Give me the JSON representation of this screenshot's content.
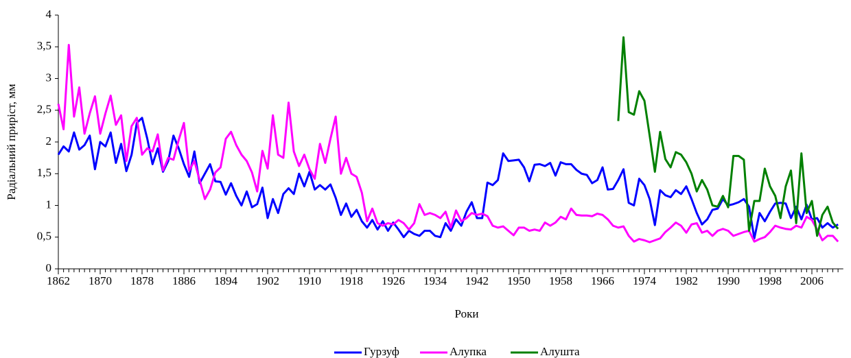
{
  "chart_data": {
    "type": "line",
    "x_label": "Роки",
    "y_label": "Радіальний приріст, мм",
    "x": [
      1862,
      1863,
      1864,
      1865,
      1866,
      1867,
      1868,
      1869,
      1870,
      1871,
      1872,
      1873,
      1874,
      1875,
      1876,
      1877,
      1878,
      1879,
      1880,
      1881,
      1882,
      1883,
      1884,
      1885,
      1886,
      1887,
      1888,
      1889,
      1890,
      1891,
      1892,
      1893,
      1894,
      1895,
      1896,
      1897,
      1898,
      1899,
      1900,
      1901,
      1902,
      1903,
      1904,
      1905,
      1906,
      1907,
      1908,
      1909,
      1910,
      1911,
      1912,
      1913,
      1914,
      1915,
      1916,
      1917,
      1918,
      1919,
      1920,
      1921,
      1922,
      1923,
      1924,
      1925,
      1926,
      1927,
      1928,
      1929,
      1930,
      1931,
      1932,
      1933,
      1934,
      1935,
      1936,
      1937,
      1938,
      1939,
      1940,
      1941,
      1942,
      1943,
      1944,
      1945,
      1946,
      1947,
      1948,
      1949,
      1950,
      1951,
      1952,
      1953,
      1954,
      1955,
      1956,
      1957,
      1958,
      1959,
      1960,
      1961,
      1962,
      1963,
      1964,
      1965,
      1966,
      1967,
      1968,
      1969,
      1970,
      1971,
      1972,
      1973,
      1974,
      1975,
      1976,
      1977,
      1978,
      1979,
      1980,
      1981,
      1982,
      1983,
      1984,
      1985,
      1986,
      1987,
      1988,
      1989,
      1990,
      1991,
      1992,
      1993,
      1994,
      1995,
      1996,
      1997,
      1998,
      1999,
      2000,
      2001,
      2002,
      2003,
      2004,
      2005,
      2006,
      2007,
      2008,
      2009,
      2010,
      2011
    ],
    "xlim": [
      1862,
      2012
    ],
    "xticks": [
      1862,
      1870,
      1878,
      1886,
      1894,
      1902,
      1910,
      1918,
      1926,
      1934,
      1942,
      1950,
      1958,
      1966,
      1974,
      1982,
      1990,
      1998,
      2006
    ],
    "ylim": [
      0,
      4
    ],
    "yticks": [
      0,
      {
        "value": 0.5,
        "label": "0,5"
      },
      1,
      {
        "value": 1.5,
        "label": "1,5"
      },
      2,
      {
        "value": 2.5,
        "label": "2,5"
      },
      3,
      {
        "value": 3.5,
        "label": "3,5"
      },
      4
    ],
    "legend": "bottom",
    "series": [
      {
        "name": "Гурзуф",
        "color": "#0000ff",
        "values": [
          1.8,
          1.93,
          1.85,
          2.15,
          1.88,
          1.95,
          2.1,
          1.57,
          2.0,
          1.93,
          2.15,
          1.67,
          1.97,
          1.54,
          1.8,
          2.3,
          2.38,
          2.05,
          1.65,
          1.9,
          1.53,
          1.7,
          2.1,
          1.9,
          1.65,
          1.45,
          1.85,
          1.35,
          1.5,
          1.65,
          1.38,
          1.37,
          1.17,
          1.35,
          1.15,
          1.0,
          1.22,
          0.97,
          1.02,
          1.28,
          0.8,
          1.1,
          0.88,
          1.18,
          1.27,
          1.18,
          1.5,
          1.3,
          1.53,
          1.25,
          1.32,
          1.25,
          1.33,
          1.12,
          0.85,
          1.03,
          0.82,
          0.93,
          0.75,
          0.65,
          0.77,
          0.62,
          0.75,
          0.6,
          0.73,
          0.62,
          0.5,
          0.6,
          0.55,
          0.52,
          0.6,
          0.6,
          0.52,
          0.5,
          0.72,
          0.6,
          0.78,
          0.68,
          0.9,
          1.05,
          0.8,
          0.8,
          1.36,
          1.32,
          1.4,
          1.82,
          1.7,
          1.71,
          1.72,
          1.6,
          1.38,
          1.64,
          1.65,
          1.62,
          1.67,
          1.47,
          1.68,
          1.65,
          1.65,
          1.56,
          1.5,
          1.48,
          1.35,
          1.4,
          1.6,
          1.25,
          1.26,
          1.4,
          1.57,
          1.04,
          1.0,
          1.42,
          1.32,
          1.1,
          0.69,
          1.24,
          1.16,
          1.13,
          1.24,
          1.18,
          1.3,
          1.1,
          0.88,
          0.7,
          0.78,
          0.93,
          0.95,
          1.1,
          1.0,
          1.02,
          1.05,
          1.1,
          0.98,
          0.48,
          0.88,
          0.75,
          0.9,
          1.03,
          1.04,
          1.03,
          0.8,
          0.98,
          0.78,
          1.01,
          0.78,
          0.8,
          0.65,
          0.72,
          0.65,
          0.7
        ]
      },
      {
        "name": "Алупка",
        "color": "#ff00ff",
        "values": [
          2.6,
          2.2,
          3.53,
          2.4,
          2.86,
          2.13,
          2.45,
          2.72,
          2.13,
          2.45,
          2.73,
          2.27,
          2.42,
          1.7,
          2.25,
          2.38,
          1.8,
          1.9,
          1.85,
          2.12,
          1.55,
          1.75,
          1.72,
          2.03,
          2.3,
          1.55,
          1.7,
          1.4,
          1.1,
          1.25,
          1.52,
          1.6,
          2.05,
          2.16,
          1.95,
          1.8,
          1.7,
          1.52,
          1.22,
          1.86,
          1.58,
          2.42,
          1.8,
          1.75,
          2.62,
          1.85,
          1.62,
          1.8,
          1.57,
          1.42,
          1.97,
          1.67,
          2.05,
          2.4,
          1.5,
          1.75,
          1.5,
          1.45,
          1.2,
          0.75,
          0.95,
          0.72,
          0.68,
          0.72,
          0.7,
          0.77,
          0.72,
          0.62,
          0.72,
          1.02,
          0.85,
          0.88,
          0.85,
          0.8,
          0.9,
          0.65,
          0.92,
          0.75,
          0.8,
          0.88,
          0.85,
          0.87,
          0.83,
          0.68,
          0.65,
          0.67,
          0.6,
          0.53,
          0.65,
          0.65,
          0.6,
          0.62,
          0.6,
          0.73,
          0.68,
          0.73,
          0.82,
          0.78,
          0.95,
          0.85,
          0.84,
          0.84,
          0.83,
          0.87,
          0.85,
          0.78,
          0.68,
          0.65,
          0.67,
          0.52,
          0.43,
          0.47,
          0.45,
          0.42,
          0.45,
          0.48,
          0.58,
          0.65,
          0.73,
          0.68,
          0.57,
          0.7,
          0.72,
          0.57,
          0.6,
          0.52,
          0.6,
          0.63,
          0.6,
          0.52,
          0.55,
          0.58,
          0.6,
          0.43,
          0.47,
          0.5,
          0.58,
          0.68,
          0.65,
          0.63,
          0.62,
          0.68,
          0.65,
          0.82,
          0.77,
          0.62,
          0.45,
          0.52,
          0.52,
          0.43
        ]
      },
      {
        "name": "Алушта",
        "color": "#008000",
        "values": [
          null,
          null,
          null,
          null,
          null,
          null,
          null,
          null,
          null,
          null,
          null,
          null,
          null,
          null,
          null,
          null,
          null,
          null,
          null,
          null,
          null,
          null,
          null,
          null,
          null,
          null,
          null,
          null,
          null,
          null,
          null,
          null,
          null,
          null,
          null,
          null,
          null,
          null,
          null,
          null,
          null,
          null,
          null,
          null,
          null,
          null,
          null,
          null,
          null,
          null,
          null,
          null,
          null,
          null,
          null,
          null,
          null,
          null,
          null,
          null,
          null,
          null,
          null,
          null,
          null,
          null,
          null,
          null,
          null,
          null,
          null,
          null,
          null,
          null,
          null,
          null,
          null,
          null,
          null,
          null,
          null,
          null,
          null,
          null,
          null,
          null,
          null,
          null,
          null,
          null,
          null,
          null,
          null,
          null,
          null,
          null,
          null,
          null,
          null,
          null,
          null,
          null,
          null,
          null,
          null,
          null,
          null,
          2.33,
          3.65,
          2.47,
          2.43,
          2.8,
          2.65,
          2.1,
          1.53,
          2.16,
          1.73,
          1.6,
          1.84,
          1.8,
          1.68,
          1.5,
          1.22,
          1.4,
          1.25,
          1.0,
          0.98,
          1.15,
          0.97,
          1.78,
          1.78,
          1.72,
          0.6,
          1.07,
          1.07,
          1.58,
          1.3,
          1.15,
          0.8,
          1.3,
          1.55,
          0.72,
          1.82,
          0.88,
          1.07,
          0.52,
          0.85,
          0.98,
          0.73,
          0.63
        ]
      }
    ]
  }
}
